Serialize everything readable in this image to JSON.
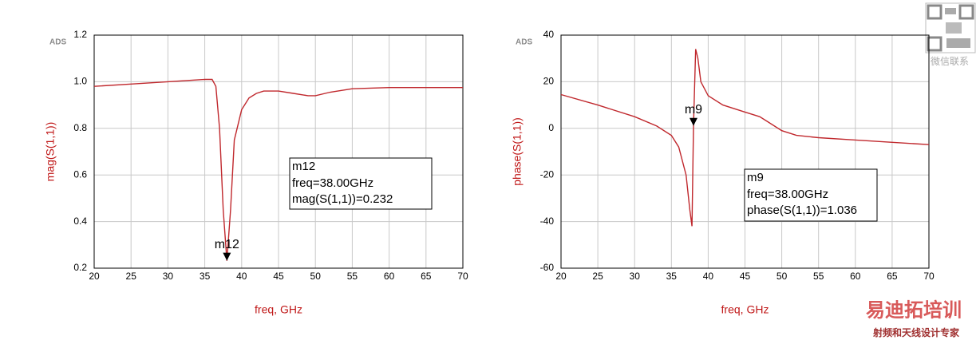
{
  "chart_data": [
    {
      "type": "line",
      "logo": "ADS",
      "x_label": "freq, GHz",
      "y_label": "mag(S(1,1))",
      "xlim": [
        20,
        70
      ],
      "ylim": [
        0.2,
        1.2
      ],
      "xticks": [
        20,
        25,
        30,
        35,
        40,
        45,
        50,
        55,
        60,
        65,
        70
      ],
      "yticks": [
        0.2,
        0.4,
        0.6,
        0.8,
        {
          "value": 1,
          "label": "1.0"
        },
        1.2
      ],
      "grid": true,
      "color": "#c0282d",
      "x": [
        20,
        25,
        30,
        35,
        36,
        36.5,
        37,
        37.5,
        38,
        38.5,
        39,
        40,
        41,
        42,
        43,
        45,
        47,
        49,
        50,
        52,
        55,
        60,
        65,
        70
      ],
      "values": [
        0.98,
        0.99,
        1.0,
        1.01,
        1.01,
        0.98,
        0.8,
        0.45,
        0.232,
        0.45,
        0.75,
        0.88,
        0.93,
        0.95,
        0.96,
        0.96,
        0.95,
        0.94,
        0.94,
        0.955,
        0.97,
        0.975,
        0.975,
        0.975
      ],
      "marker": {
        "name": "m12",
        "x": 38,
        "y": 0.232,
        "readout": [
          "freq=38.00GHz",
          "mag(S(1,1))=0.232"
        ]
      }
    },
    {
      "type": "line",
      "logo": "ADS",
      "x_label": "freq, GHz",
      "y_label": "phase(S(1,1))",
      "xlim": [
        20,
        70
      ],
      "ylim": [
        -60,
        40
      ],
      "xticks": [
        20,
        25,
        30,
        35,
        40,
        45,
        50,
        55,
        60,
        65,
        70
      ],
      "yticks": [
        -60,
        -40,
        -20,
        0,
        20,
        40
      ],
      "grid": true,
      "color": "#c0282d",
      "x": [
        20,
        25,
        30,
        33,
        35,
        36,
        37,
        37.5,
        37.8,
        38,
        38.3,
        38.6,
        39,
        40,
        42,
        45,
        47,
        48,
        50,
        52,
        55,
        60,
        65,
        70
      ],
      "values": [
        14.5,
        10,
        5,
        1,
        -3,
        -8,
        -20,
        -35,
        -42,
        1.036,
        34,
        30,
        20,
        14,
        10,
        7,
        5,
        3,
        -1,
        -3,
        -4,
        -5,
        -6,
        -7
      ],
      "marker": {
        "name": "m9",
        "x": 38,
        "y": 1.036,
        "readout": [
          "freq=38.00GHz",
          "phase(S(1,1))=1.036"
        ]
      }
    }
  ],
  "watermark": {
    "qr_caption": "微信联系",
    "brand": "易迪拓培训",
    "slogan": "射频和天线设计专家"
  }
}
